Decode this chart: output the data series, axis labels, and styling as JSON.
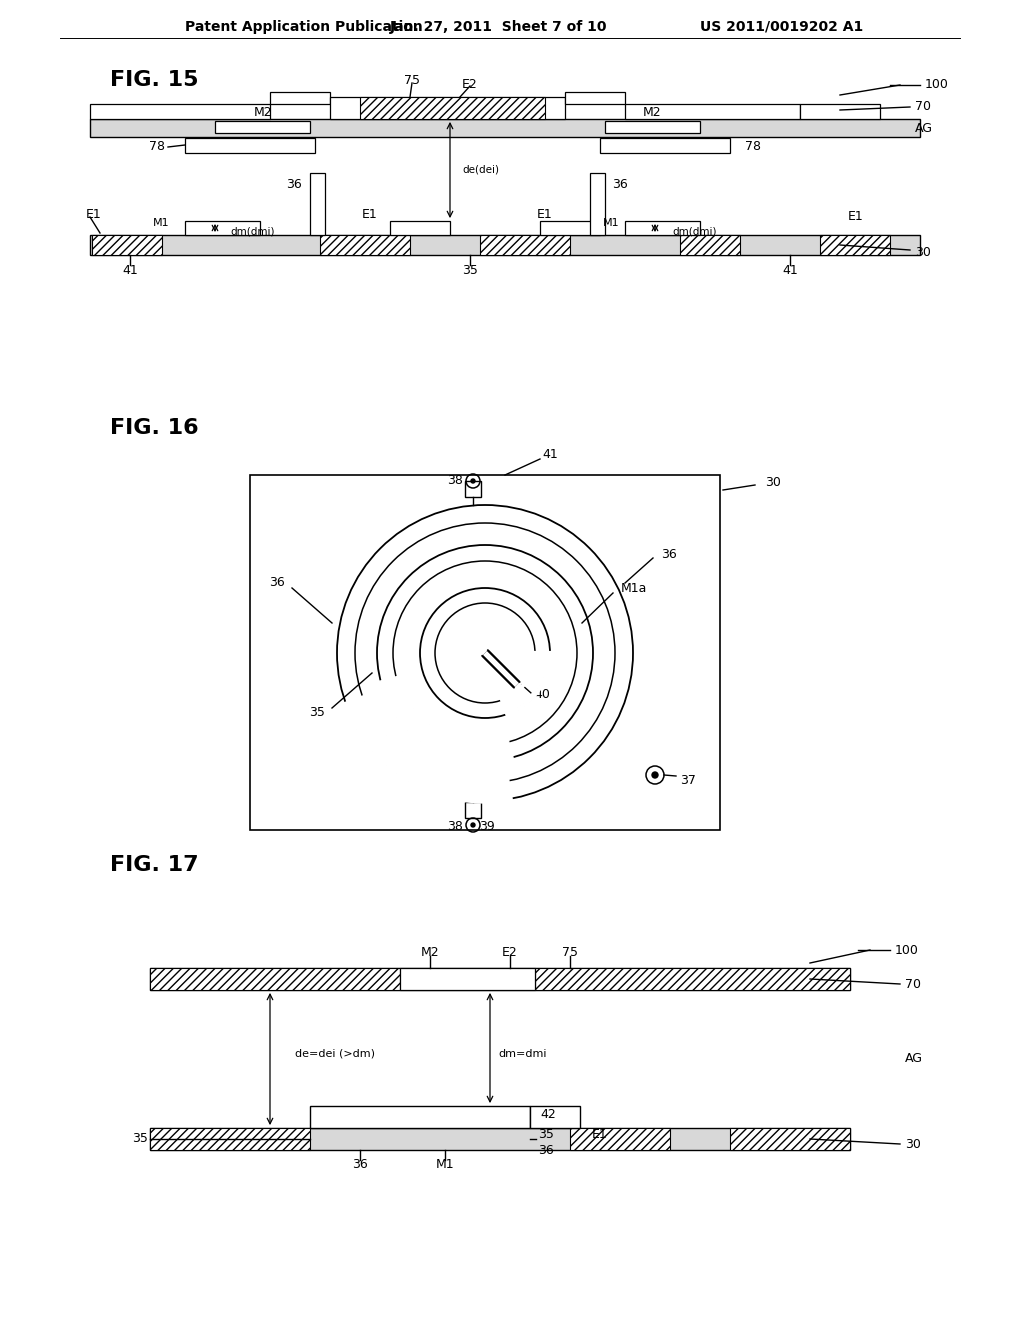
{
  "bg_color": "#ffffff",
  "header_text": "Patent Application Publication",
  "header_date": "Jan. 27, 2011  Sheet 7 of 10",
  "header_patent": "US 2011/0019202 A1",
  "fig15_label": "FIG. 15",
  "fig16_label": "FIG. 16",
  "fig17_label": "FIG. 17"
}
